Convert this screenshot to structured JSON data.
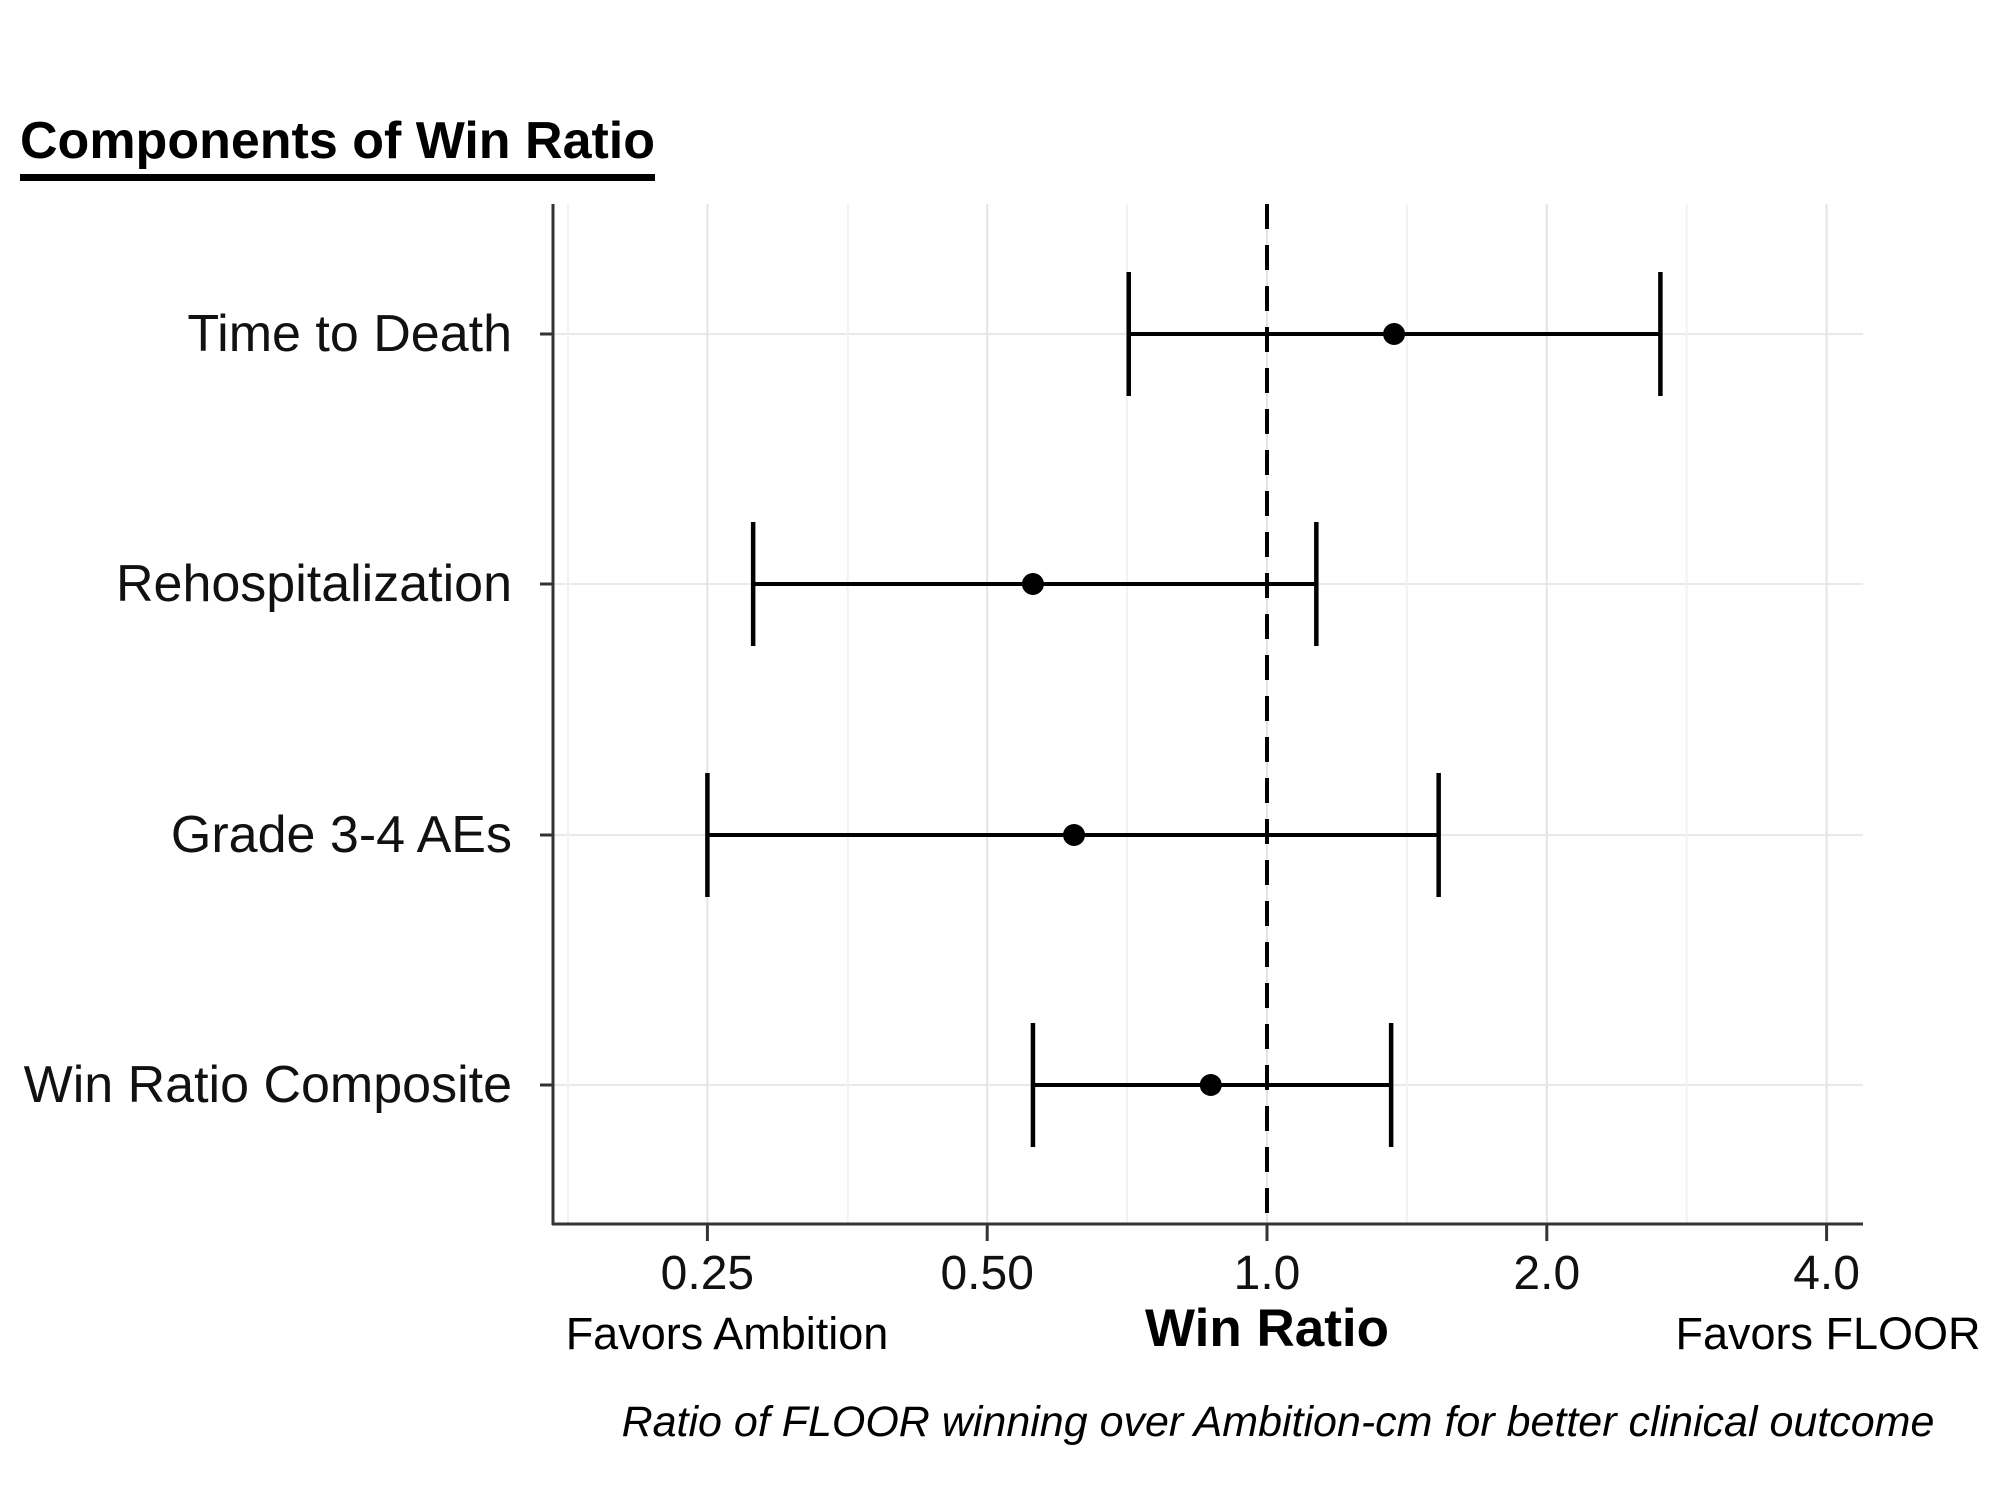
{
  "title": "Components of Win Ratio",
  "chart_data": {
    "type": "forest",
    "x_scale": "log2",
    "rows": [
      {
        "label": "Time to Death",
        "estimate": 1.37,
        "lower": 0.71,
        "upper": 2.65
      },
      {
        "label": "Rehospitalization",
        "estimate": 0.56,
        "lower": 0.28,
        "upper": 1.13
      },
      {
        "label": "Grade 3-4 AEs",
        "estimate": 0.62,
        "lower": 0.25,
        "upper": 1.53
      },
      {
        "label": "Win Ratio Composite",
        "estimate": 0.87,
        "lower": 0.56,
        "upper": 1.36
      }
    ],
    "reference_line": 1.0,
    "x_axis": {
      "label": "Win Ratio",
      "ticks": [
        0.25,
        0.5,
        1.0,
        2.0,
        4.0
      ],
      "tick_labels": [
        "0.25",
        "0.50",
        "1.0",
        "2.0",
        "4.0"
      ],
      "minor_ticks": [
        0.177,
        0.354,
        0.707,
        1.414,
        2.828
      ],
      "range": [
        0.17,
        4.4
      ],
      "left_annotation": "Favors Ambition",
      "right_annotation": "Favors FLOOR"
    },
    "caption": "Ratio of FLOOR winning over Ambition-cm for better clinical outcome",
    "colors": {
      "data": "#000000",
      "reference_line": "#000000",
      "axis": "#333333",
      "grid_major": "#e4e4e4",
      "grid_minor": "#f2f2f2",
      "grid_horizontal": "#e9e9e9",
      "background": "#ffffff"
    },
    "legend": "none",
    "grid": true
  }
}
